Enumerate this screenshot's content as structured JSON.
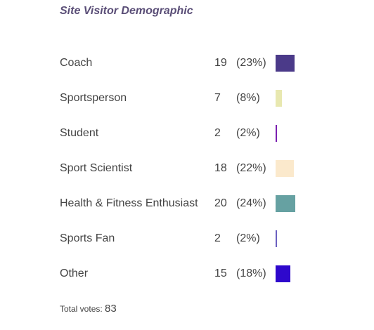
{
  "poll": {
    "title": "Site Visitor Demographic",
    "total_label": "Total votes:",
    "total_votes": "83",
    "options": [
      {
        "label": "Coach",
        "count": "19",
        "percent": "(23%)",
        "fraction": 0.23,
        "color": "#4b3a89"
      },
      {
        "label": "Sportsperson",
        "count": "7",
        "percent": "(8%)",
        "fraction": 0.08,
        "color": "#e8e8b0"
      },
      {
        "label": "Student",
        "count": "2",
        "percent": "(2%)",
        "fraction": 0.02,
        "color": "#7a1fb0"
      },
      {
        "label": "Sport Scientist",
        "count": "18",
        "percent": "(22%)",
        "fraction": 0.22,
        "color": "#fbe9cc"
      },
      {
        "label": "Health & Fitness Enthusiast",
        "count": "20",
        "percent": "(24%)",
        "fraction": 0.24,
        "color": "#66a1a2"
      },
      {
        "label": "Sports Fan",
        "count": "2",
        "percent": "(2%)",
        "fraction": 0.02,
        "color": "#6a5fc0"
      },
      {
        "label": "Other",
        "count": "15",
        "percent": "(18%)",
        "fraction": 0.18,
        "color": "#2e08cc"
      }
    ]
  }
}
